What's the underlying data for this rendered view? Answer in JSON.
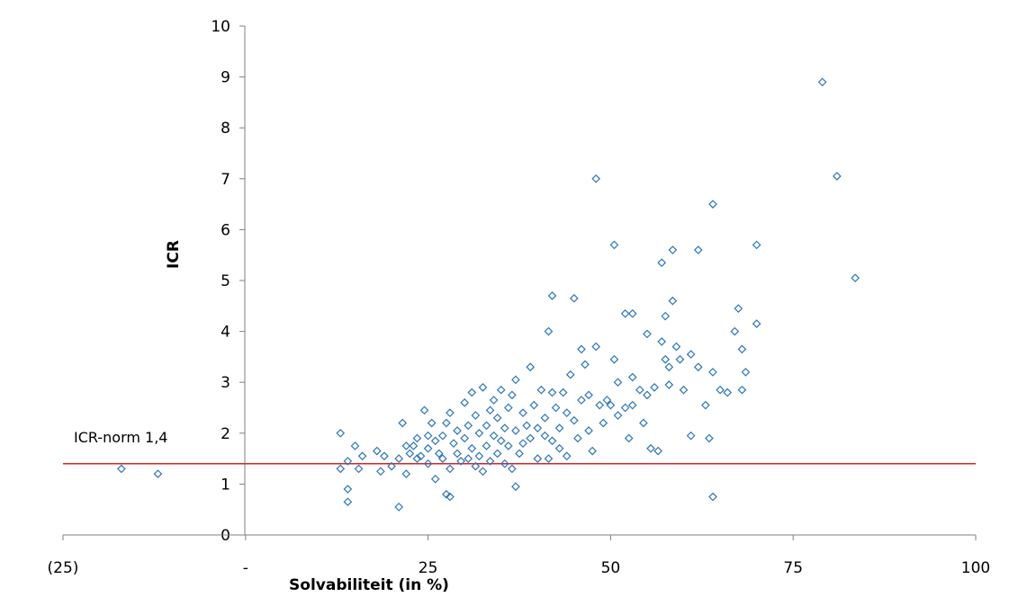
{
  "chart_data": {
    "type": "scatter",
    "title": "",
    "xlabel": "Solvabiliteit  (in %)",
    "ylabel": "ICR",
    "xlim": [
      -25,
      100
    ],
    "ylim": [
      0,
      10
    ],
    "x_ticks": [
      {
        "value": -25,
        "label": "(25)"
      },
      {
        "value": 0,
        "label": "-"
      },
      {
        "value": 25,
        "label": "25"
      },
      {
        "value": 50,
        "label": "50"
      },
      {
        "value": 75,
        "label": "75"
      },
      {
        "value": 100,
        "label": "100"
      }
    ],
    "y_ticks": [
      0,
      1,
      2,
      3,
      4,
      5,
      6,
      7,
      8,
      9,
      10
    ],
    "grid": false,
    "legend": "none",
    "marker": "diamond-open",
    "marker_color": "#2e75b6",
    "reference_line": {
      "y": 1.4,
      "label": "ICR-norm 1,4",
      "color": "#e02020"
    },
    "points": [
      [
        -17,
        1.3
      ],
      [
        -12,
        1.2
      ],
      [
        13,
        2.0
      ],
      [
        13,
        1.3
      ],
      [
        14,
        0.9
      ],
      [
        14,
        0.65
      ],
      [
        14,
        1.45
      ],
      [
        15,
        1.75
      ],
      [
        15.5,
        1.3
      ],
      [
        16,
        1.55
      ],
      [
        18,
        1.65
      ],
      [
        18.5,
        1.25
      ],
      [
        19,
        1.55
      ],
      [
        20,
        1.35
      ],
      [
        21,
        1.5
      ],
      [
        21,
        0.55
      ],
      [
        21.5,
        2.2
      ],
      [
        22,
        1.75
      ],
      [
        22,
        1.2
      ],
      [
        22.5,
        1.6
      ],
      [
        23,
        1.75
      ],
      [
        23.5,
        1.9
      ],
      [
        23.5,
        1.5
      ],
      [
        24,
        1.55
      ],
      [
        24.5,
        2.45
      ],
      [
        25,
        1.95
      ],
      [
        25,
        1.7
      ],
      [
        25,
        1.4
      ],
      [
        25.5,
        2.2
      ],
      [
        26,
        1.85
      ],
      [
        26,
        1.1
      ],
      [
        26.5,
        1.6
      ],
      [
        27,
        1.95
      ],
      [
        27,
        1.5
      ],
      [
        27.5,
        0.8
      ],
      [
        27.5,
        2.2
      ],
      [
        28,
        2.4
      ],
      [
        28,
        1.3
      ],
      [
        28,
        0.75
      ],
      [
        28.5,
        1.8
      ],
      [
        29,
        2.05
      ],
      [
        29,
        1.6
      ],
      [
        29.5,
        1.45
      ],
      [
        30,
        2.6
      ],
      [
        30,
        1.9
      ],
      [
        30.5,
        2.15
      ],
      [
        30.5,
        1.5
      ],
      [
        31,
        2.8
      ],
      [
        31,
        1.7
      ],
      [
        31.5,
        2.35
      ],
      [
        31.5,
        1.35
      ],
      [
        32,
        2.0
      ],
      [
        32,
        1.55
      ],
      [
        32.5,
        2.9
      ],
      [
        32.5,
        1.25
      ],
      [
        33,
        2.15
      ],
      [
        33,
        1.75
      ],
      [
        33.5,
        2.45
      ],
      [
        33.5,
        1.45
      ],
      [
        34,
        1.95
      ],
      [
        34,
        2.65
      ],
      [
        34.5,
        1.6
      ],
      [
        34.5,
        2.3
      ],
      [
        35,
        2.85
      ],
      [
        35,
        1.85
      ],
      [
        35.5,
        2.1
      ],
      [
        35.5,
        1.4
      ],
      [
        36,
        1.75
      ],
      [
        36,
        2.5
      ],
      [
        36.5,
        2.75
      ],
      [
        36.5,
        1.3
      ],
      [
        37,
        3.05
      ],
      [
        37,
        2.05
      ],
      [
        37,
        0.95
      ],
      [
        37.5,
        1.6
      ],
      [
        38,
        2.4
      ],
      [
        38,
        1.8
      ],
      [
        38.5,
        2.15
      ],
      [
        39,
        3.3
      ],
      [
        39,
        1.9
      ],
      [
        39.5,
        2.55
      ],
      [
        40,
        2.1
      ],
      [
        40,
        1.5
      ],
      [
        40.5,
        2.85
      ],
      [
        41,
        2.3
      ],
      [
        41,
        1.95
      ],
      [
        41.5,
        4.0
      ],
      [
        41.5,
        1.5
      ],
      [
        42,
        4.7
      ],
      [
        42,
        2.8
      ],
      [
        42,
        1.85
      ],
      [
        42.5,
        2.5
      ],
      [
        43,
        2.1
      ],
      [
        43,
        1.7
      ],
      [
        43.5,
        2.8
      ],
      [
        44,
        2.4
      ],
      [
        44,
        1.55
      ],
      [
        44.5,
        3.15
      ],
      [
        45,
        4.65
      ],
      [
        45,
        2.25
      ],
      [
        45.5,
        1.9
      ],
      [
        46,
        3.65
      ],
      [
        46,
        2.65
      ],
      [
        46.5,
        3.35
      ],
      [
        47,
        2.75
      ],
      [
        47,
        2.05
      ],
      [
        47.5,
        1.65
      ],
      [
        48,
        7.0
      ],
      [
        48,
        3.7
      ],
      [
        48.5,
        2.55
      ],
      [
        49,
        2.2
      ],
      [
        49.5,
        2.65
      ],
      [
        50,
        2.55
      ],
      [
        50.5,
        5.7
      ],
      [
        50.5,
        3.45
      ],
      [
        51,
        3.0
      ],
      [
        51,
        2.35
      ],
      [
        52,
        4.35
      ],
      [
        52,
        2.5
      ],
      [
        52.5,
        1.9
      ],
      [
        53,
        4.35
      ],
      [
        53,
        3.1
      ],
      [
        53,
        2.55
      ],
      [
        54,
        2.85
      ],
      [
        54.5,
        2.2
      ],
      [
        55,
        3.95
      ],
      [
        55,
        2.75
      ],
      [
        55.5,
        1.7
      ],
      [
        56,
        2.9
      ],
      [
        56.5,
        1.65
      ],
      [
        57,
        5.35
      ],
      [
        57,
        3.8
      ],
      [
        57.5,
        4.3
      ],
      [
        57.5,
        3.45
      ],
      [
        58,
        3.3
      ],
      [
        58,
        2.95
      ],
      [
        58.5,
        5.6
      ],
      [
        58.5,
        4.6
      ],
      [
        59,
        3.7
      ],
      [
        59.5,
        3.45
      ],
      [
        60,
        2.85
      ],
      [
        61,
        3.55
      ],
      [
        61,
        1.95
      ],
      [
        62,
        5.6
      ],
      [
        62,
        3.3
      ],
      [
        63,
        2.55
      ],
      [
        63.5,
        1.9
      ],
      [
        64,
        6.5
      ],
      [
        64,
        3.2
      ],
      [
        64,
        0.75
      ],
      [
        65,
        2.85
      ],
      [
        66,
        2.8
      ],
      [
        67,
        4.0
      ],
      [
        67.5,
        4.45
      ],
      [
        68,
        3.65
      ],
      [
        68,
        2.85
      ],
      [
        68.5,
        3.2
      ],
      [
        70,
        5.7
      ],
      [
        70,
        4.15
      ],
      [
        79,
        8.9
      ],
      [
        81,
        7.05
      ],
      [
        83.5,
        5.05
      ]
    ]
  }
}
